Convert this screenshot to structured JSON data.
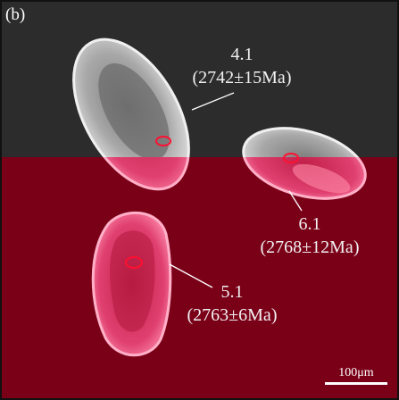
{
  "figure": {
    "panel_label": "(b)",
    "colors": {
      "upper_background": "#2c2c2c",
      "lower_background": "#7a0018",
      "overlay_red": "#c00030",
      "spot_marker": "#ff1030"
    }
  },
  "spots": [
    {
      "id": "4.1",
      "age": "(2742±15Ma)"
    },
    {
      "id": "6.1",
      "age": "(2768±12Ma)"
    },
    {
      "id": "5.1",
      "age": "(2763±6Ma)"
    }
  ],
  "scale_bar": {
    "label": "100μm"
  }
}
